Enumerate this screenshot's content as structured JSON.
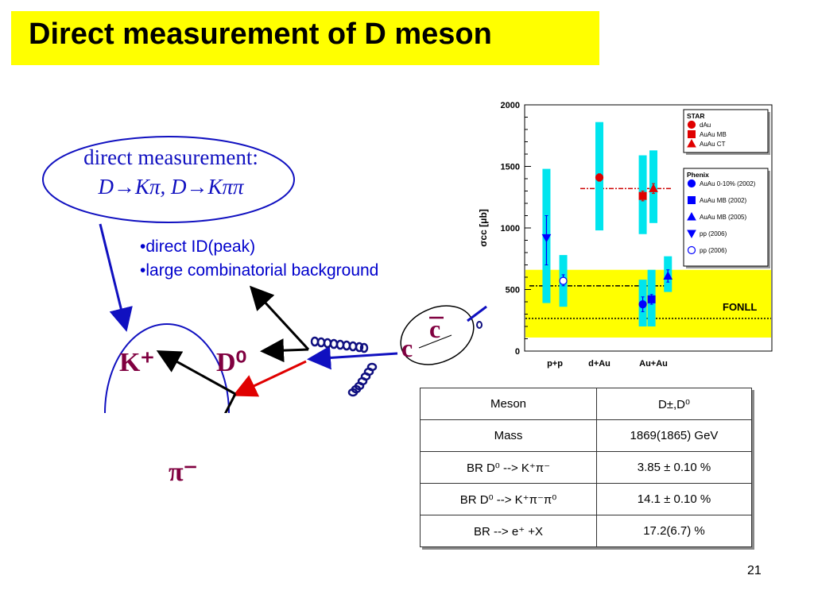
{
  "slide": {
    "title": "Direct measurement  of D meson",
    "page_number": "21",
    "colors": {
      "title_bg": "#ffff00",
      "accent_blue": "#0000cc",
      "particle": "#800040",
      "fonll_band": "#ffff00"
    }
  },
  "ellipse": {
    "line1": "direct measurement:",
    "line2": "D→Kπ, D→Kππ"
  },
  "bullets": [
    "•direct ID(peak)",
    "•large combinatorial background"
  ],
  "diagram": {
    "k_plus": "K⁺",
    "d_zero": "D⁰",
    "pi_minus": "π⁻",
    "c_quark": "c",
    "c_bar": "c"
  },
  "table": {
    "rows": [
      [
        "Meson",
        "D±,D⁰"
      ],
      [
        "Mass",
        "1869(1865) GeV"
      ],
      [
        "BR D⁰ --> K⁺π⁻",
        "3.85 ± 0.10 %"
      ],
      [
        "BR D⁰ --> K⁺π⁻π⁰",
        "14.1 ± 0.10 %"
      ],
      [
        "BR --> e⁺ +X",
        "17.2(6.7) %"
      ]
    ]
  },
  "chart_data": {
    "type": "scatter",
    "ylabel": "σcc [μb]",
    "ylim": [
      0,
      2000
    ],
    "yticks": [
      "0",
      "500",
      "1000",
      "1500",
      "2000"
    ],
    "categories": [
      "p+p",
      "d+Au",
      "Au+Au"
    ],
    "fonll": {
      "label": "FONLL",
      "band": [
        110,
        660
      ],
      "central": 265
    },
    "dashdot_lines": [
      {
        "value": 530,
        "from": "p+p",
        "to": "Au+Au"
      },
      {
        "value": 1320,
        "from": "d+Au",
        "to": "Au+Au"
      }
    ],
    "points": [
      {
        "series": "pp (2006)",
        "group": "p+p",
        "offset": -0.22,
        "value": 920,
        "err": [
          700,
          1100
        ],
        "sys": [
          390,
          1480
        ],
        "marker": "tri-down",
        "color": "#0000ff",
        "filled": true
      },
      {
        "series": "pp (2006)",
        "group": "p+p",
        "offset": 0.22,
        "value": 570,
        "err": [
          530,
          620
        ],
        "sys": [
          360,
          780
        ],
        "marker": "circle",
        "color": "#0000ff",
        "filled": false
      },
      {
        "series": "dAu",
        "group": "d+Au",
        "offset": 0,
        "value": 1410,
        "err": [
          1380,
          1440
        ],
        "sys": [
          980,
          1860
        ],
        "marker": "circle",
        "color": "#e00000",
        "filled": true
      },
      {
        "series": "AuAu 0-10% (2002)",
        "group": "Au+Au",
        "offset": -0.28,
        "value": 380,
        "err": [
          320,
          440
        ],
        "sys": [
          200,
          580
        ],
        "marker": "circle",
        "color": "#0000ff",
        "filled": true
      },
      {
        "series": "AuAu MB (2002)",
        "group": "Au+Au",
        "offset": -0.05,
        "value": 420,
        "err": [
          380,
          460
        ],
        "sys": [
          200,
          660
        ],
        "marker": "square",
        "color": "#0000ff",
        "filled": true
      },
      {
        "series": "AuAu MB (2005)",
        "group": "Au+Au",
        "offset": 0.38,
        "value": 610,
        "err": [
          560,
          660
        ],
        "sys": [
          480,
          770
        ],
        "marker": "tri-up",
        "color": "#0000ff",
        "filled": true
      },
      {
        "series": "AuAu MB",
        "group": "Au+Au",
        "offset": -0.28,
        "value": 1260,
        "err": [
          1220,
          1300
        ],
        "sys": [
          950,
          1590
        ],
        "marker": "square",
        "color": "#e00000",
        "filled": true
      },
      {
        "series": "AuAu CT",
        "group": "Au+Au",
        "offset": 0.0,
        "value": 1320,
        "err": [
          1280,
          1360
        ],
        "sys": [
          1040,
          1630
        ],
        "marker": "tri-up",
        "color": "#e00000",
        "filled": true
      }
    ],
    "legend_star": {
      "title": "STAR",
      "entries": [
        {
          "label": "dAu",
          "marker": "circle",
          "color": "#e00000"
        },
        {
          "label": "AuAu MB",
          "marker": "square",
          "color": "#e00000"
        },
        {
          "label": "AuAu CT",
          "marker": "tri-up",
          "color": "#e00000"
        }
      ]
    },
    "legend_phenix": {
      "title": "Phenix",
      "entries": [
        {
          "label": "AuAu 0-10% (2002)",
          "marker": "circle",
          "color": "#0000ff"
        },
        {
          "label": "AuAu MB (2002)",
          "marker": "square",
          "color": "#0000ff"
        },
        {
          "label": "AuAu MB (2005)",
          "marker": "tri-up",
          "color": "#0000ff"
        },
        {
          "label": "pp (2006)",
          "marker": "tri-down",
          "color": "#0000ff"
        },
        {
          "label": "pp (2006)",
          "marker": "circle-open",
          "color": "#0000ff"
        }
      ]
    }
  }
}
